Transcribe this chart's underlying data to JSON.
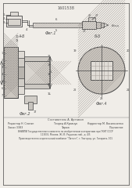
{
  "bg_color": "#f0ede8",
  "line_color": "#444444",
  "title_text": "1601538",
  "fig1_label": "Фиг.1",
  "fig2_label": "Фиг.2",
  "fig3_label": "А-Б",
  "fig4_label": "Б-Б",
  "fig4_sub": "Фиг.4"
}
